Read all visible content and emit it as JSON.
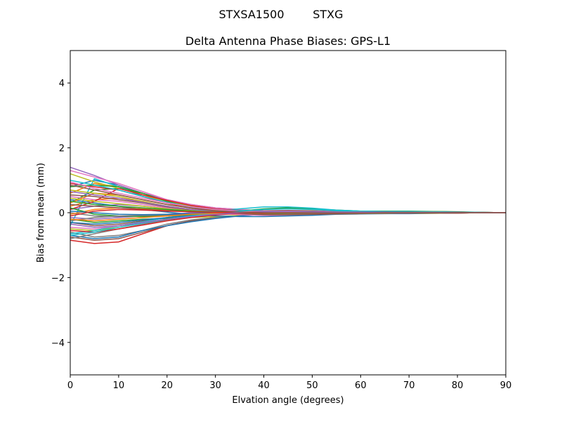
{
  "chart_data": {
    "type": "line",
    "suptitle": "STXSA1500        STXG",
    "title": "Delta Antenna Phase Biases: GPS-L1",
    "xlabel": "Elvation angle (degrees)",
    "ylabel": "Bias from mean (mm)",
    "xlim": [
      0,
      90
    ],
    "ylim": [
      -5,
      5
    ],
    "xticks": [
      "0",
      "10",
      "20",
      "30",
      "40",
      "50",
      "60",
      "70",
      "80",
      "90"
    ],
    "yticks": [
      "4",
      "2",
      "0",
      "−2",
      "−4"
    ],
    "x": [
      0,
      5,
      10,
      15,
      20,
      25,
      30,
      35,
      40,
      45,
      50,
      55,
      60,
      65,
      70,
      75,
      80,
      85,
      90
    ],
    "legend": "none",
    "grid": false,
    "series": [
      {
        "color": "#1f77b4",
        "values": [
          0.8,
          1.0,
          0.85,
          0.6,
          0.35,
          0.2,
          0.12,
          0.08,
          0.05,
          0.03,
          0.02,
          0.02,
          0.03,
          0.04,
          0.04,
          0.03,
          0.02,
          0.01,
          0.0
        ]
      },
      {
        "color": "#ff7f0e",
        "values": [
          0.6,
          0.9,
          0.8,
          0.55,
          0.3,
          0.15,
          0.08,
          0.05,
          0.04,
          0.03,
          0.02,
          0.02,
          0.03,
          0.03,
          0.03,
          0.02,
          0.02,
          0.01,
          0.0
        ]
      },
      {
        "color": "#2ca02c",
        "values": [
          0.3,
          0.7,
          0.75,
          0.6,
          0.35,
          0.2,
          0.1,
          0.06,
          0.04,
          0.03,
          0.02,
          0.01,
          0.02,
          0.02,
          0.02,
          0.01,
          0.01,
          0.0,
          0.0
        ]
      },
      {
        "color": "#d62728",
        "values": [
          -0.85,
          -0.95,
          -0.9,
          -0.65,
          -0.4,
          -0.25,
          -0.15,
          -0.08,
          -0.03,
          0.0,
          0.02,
          0.02,
          0.01,
          0.0,
          0.0,
          0.0,
          0.0,
          0.0,
          0.0
        ]
      },
      {
        "color": "#9467bd",
        "values": [
          1.4,
          1.15,
          0.85,
          0.6,
          0.4,
          0.25,
          0.15,
          0.1,
          0.06,
          0.03,
          0.01,
          0.0,
          -0.01,
          -0.01,
          -0.01,
          -0.01,
          0.0,
          0.0,
          0.0
        ]
      },
      {
        "color": "#8c564b",
        "values": [
          -0.75,
          -0.85,
          -0.8,
          -0.6,
          -0.4,
          -0.25,
          -0.15,
          -0.08,
          -0.03,
          0.0,
          0.01,
          0.01,
          0.01,
          0.0,
          0.0,
          0.0,
          0.0,
          0.0,
          0.0
        ]
      },
      {
        "color": "#e377c2",
        "values": [
          1.3,
          1.1,
          0.9,
          0.65,
          0.4,
          0.25,
          0.15,
          0.1,
          0.06,
          0.04,
          0.02,
          0.01,
          0.0,
          0.0,
          0.0,
          0.0,
          0.0,
          0.0,
          0.0
        ]
      },
      {
        "color": "#7f7f7f",
        "values": [
          -0.6,
          -0.75,
          -0.7,
          -0.55,
          -0.35,
          -0.22,
          -0.14,
          -0.08,
          -0.04,
          -0.02,
          -0.01,
          0.0,
          0.0,
          0.0,
          0.0,
          0.0,
          0.0,
          0.0,
          0.0
        ]
      },
      {
        "color": "#bcbd22",
        "values": [
          -0.5,
          -0.55,
          -0.45,
          -0.3,
          -0.2,
          -0.15,
          -0.12,
          -0.08,
          -0.05,
          -0.03,
          -0.02,
          -0.01,
          0.0,
          0.0,
          0.0,
          0.0,
          0.0,
          0.0,
          0.0
        ]
      },
      {
        "color": "#17becf",
        "values": [
          -0.4,
          1.05,
          0.8,
          0.5,
          0.3,
          0.18,
          0.1,
          0.07,
          0.06,
          0.04,
          0.02,
          0.01,
          0.01,
          0.01,
          0.01,
          0.01,
          0.0,
          0.0,
          0.0
        ]
      },
      {
        "color": "#1f77b4",
        "values": [
          -0.7,
          -0.8,
          -0.75,
          -0.55,
          -0.4,
          -0.28,
          -0.18,
          -0.1,
          -0.05,
          -0.02,
          0.0,
          0.01,
          0.01,
          0.01,
          0.0,
          0.0,
          0.0,
          0.0,
          0.0
        ]
      },
      {
        "color": "#ff7f0e",
        "values": [
          0.2,
          0.4,
          0.45,
          0.35,
          0.2,
          0.1,
          0.05,
          0.03,
          0.02,
          0.01,
          0.01,
          0.01,
          0.01,
          0.01,
          0.01,
          0.0,
          0.0,
          0.0,
          0.0
        ]
      },
      {
        "color": "#2ca02c",
        "values": [
          -0.2,
          -0.3,
          -0.25,
          -0.2,
          -0.18,
          -0.12,
          -0.05,
          0.05,
          0.12,
          0.15,
          0.12,
          0.08,
          0.05,
          0.05,
          0.05,
          0.04,
          0.03,
          0.01,
          0.0
        ]
      },
      {
        "color": "#d62728",
        "values": [
          0.9,
          0.8,
          0.7,
          0.5,
          0.3,
          0.15,
          0.05,
          0.0,
          -0.03,
          -0.04,
          -0.04,
          -0.03,
          -0.02,
          -0.02,
          -0.02,
          -0.01,
          -0.01,
          0.0,
          0.0
        ]
      },
      {
        "color": "#9467bd",
        "values": [
          0.1,
          0.2,
          0.25,
          0.2,
          0.12,
          0.06,
          0.03,
          0.02,
          0.01,
          0.01,
          0.01,
          0.01,
          0.01,
          0.01,
          0.01,
          0.0,
          0.0,
          0.0,
          0.0
        ]
      },
      {
        "color": "#8c564b",
        "values": [
          -0.3,
          -0.4,
          -0.35,
          -0.25,
          -0.15,
          -0.08,
          -0.02,
          0.03,
          0.06,
          0.07,
          0.06,
          0.04,
          0.03,
          0.03,
          0.03,
          0.02,
          0.02,
          0.01,
          0.0
        ]
      },
      {
        "color": "#e377c2",
        "values": [
          0.5,
          0.4,
          0.35,
          0.25,
          0.15,
          0.05,
          -0.02,
          -0.06,
          -0.08,
          -0.08,
          -0.06,
          -0.04,
          -0.03,
          -0.03,
          -0.02,
          -0.02,
          -0.01,
          0.0,
          0.0
        ]
      },
      {
        "color": "#7f7f7f",
        "values": [
          0.0,
          -0.1,
          -0.12,
          -0.1,
          -0.08,
          -0.05,
          -0.02,
          0.0,
          0.02,
          0.03,
          0.03,
          0.02,
          0.02,
          0.02,
          0.02,
          0.01,
          0.01,
          0.0,
          0.0
        ]
      },
      {
        "color": "#bcbd22",
        "values": [
          1.2,
          0.95,
          0.75,
          0.55,
          0.35,
          0.2,
          0.1,
          0.05,
          0.02,
          0.0,
          -0.01,
          -0.01,
          -0.01,
          -0.01,
          -0.01,
          -0.01,
          0.0,
          0.0,
          0.0
        ]
      },
      {
        "color": "#17becf",
        "values": [
          -0.65,
          -0.55,
          -0.4,
          -0.28,
          -0.15,
          -0.05,
          0.05,
          0.12,
          0.18,
          0.18,
          0.14,
          0.08,
          0.05,
          0.04,
          0.04,
          0.03,
          0.02,
          0.01,
          0.0
        ]
      },
      {
        "color": "#1f77b4",
        "values": [
          0.4,
          0.3,
          0.2,
          0.1,
          0.02,
          -0.05,
          -0.1,
          -0.12,
          -0.12,
          -0.1,
          -0.08,
          -0.05,
          -0.04,
          -0.03,
          -0.03,
          -0.02,
          -0.01,
          0.0,
          0.0
        ]
      },
      {
        "color": "#ff7f0e",
        "values": [
          0.3,
          0.6,
          0.55,
          0.4,
          0.25,
          0.15,
          0.08,
          0.05,
          0.03,
          0.02,
          0.01,
          0.01,
          0.01,
          0.01,
          0.01,
          0.01,
          0.0,
          0.0,
          0.0
        ]
      },
      {
        "color": "#2ca02c",
        "values": [
          0.8,
          0.85,
          0.8,
          0.6,
          0.35,
          0.15,
          0.05,
          0.0,
          -0.02,
          -0.03,
          -0.03,
          -0.02,
          -0.02,
          -0.01,
          -0.01,
          -0.01,
          0.0,
          0.0,
          0.0
        ]
      },
      {
        "color": "#d62728",
        "values": [
          0.1,
          0.35,
          0.75,
          0.55,
          0.38,
          0.22,
          0.12,
          0.06,
          0.03,
          0.01,
          0.0,
          -0.01,
          -0.02,
          -0.02,
          -0.02,
          -0.01,
          -0.01,
          0.0,
          0.0
        ]
      },
      {
        "color": "#9467bd",
        "values": [
          -0.15,
          -0.2,
          -0.15,
          -0.1,
          -0.05,
          0.0,
          0.02,
          0.04,
          0.05,
          0.05,
          0.04,
          0.03,
          0.02,
          0.02,
          0.02,
          0.01,
          0.01,
          0.0,
          0.0
        ]
      },
      {
        "color": "#8c564b",
        "values": [
          0.55,
          0.5,
          0.4,
          0.3,
          0.18,
          0.08,
          0.02,
          -0.03,
          -0.06,
          -0.06,
          -0.05,
          -0.04,
          -0.03,
          -0.02,
          -0.02,
          -0.01,
          -0.01,
          0.0,
          0.0
        ]
      },
      {
        "color": "#e377c2",
        "values": [
          -0.45,
          -0.5,
          -0.4,
          -0.3,
          -0.2,
          -0.12,
          -0.05,
          0.0,
          0.04,
          0.05,
          0.04,
          0.03,
          0.02,
          0.02,
          0.02,
          0.01,
          0.01,
          0.0,
          0.0
        ]
      },
      {
        "color": "#7f7f7f",
        "values": [
          -0.8,
          -0.65,
          -0.5,
          -0.35,
          -0.22,
          -0.12,
          -0.05,
          0.0,
          0.02,
          0.03,
          0.03,
          0.02,
          0.02,
          0.02,
          0.02,
          0.01,
          0.01,
          0.0,
          0.0
        ]
      },
      {
        "color": "#bcbd22",
        "values": [
          0.7,
          0.6,
          0.5,
          0.35,
          0.2,
          0.1,
          0.04,
          0.0,
          -0.02,
          -0.02,
          -0.02,
          -0.01,
          -0.01,
          -0.01,
          -0.01,
          -0.01,
          0.0,
          0.0,
          0.0
        ]
      },
      {
        "color": "#17becf",
        "values": [
          1.0,
          0.85,
          0.7,
          0.5,
          0.32,
          0.18,
          0.1,
          0.05,
          0.02,
          0.0,
          -0.01,
          -0.01,
          -0.01,
          -0.01,
          -0.01,
          0.0,
          0.0,
          0.0,
          0.0
        ]
      },
      {
        "color": "#1f77b4",
        "values": [
          -0.3,
          -0.35,
          -0.3,
          -0.22,
          -0.15,
          -0.08,
          -0.03,
          0.01,
          0.03,
          0.04,
          0.03,
          0.02,
          0.02,
          0.02,
          0.01,
          0.01,
          0.01,
          0.0,
          0.0
        ]
      },
      {
        "color": "#ff7f0e",
        "values": [
          -0.05,
          0.1,
          0.15,
          0.12,
          0.08,
          0.04,
          0.02,
          0.01,
          0.0,
          0.0,
          0.0,
          0.0,
          0.0,
          0.0,
          0.0,
          0.0,
          0.0,
          0.0,
          0.0
        ]
      },
      {
        "color": "#2ca02c",
        "values": [
          0.15,
          -0.05,
          -0.1,
          -0.12,
          -0.1,
          -0.06,
          -0.03,
          0.0,
          0.02,
          0.03,
          0.03,
          0.02,
          0.02,
          0.02,
          0.01,
          0.01,
          0.01,
          0.0,
          0.0
        ]
      },
      {
        "color": "#d62728",
        "values": [
          -0.55,
          -0.6,
          -0.5,
          -0.38,
          -0.25,
          -0.15,
          -0.07,
          -0.02,
          0.01,
          0.02,
          0.02,
          0.02,
          0.01,
          0.01,
          0.01,
          0.01,
          0.0,
          0.0,
          0.0
        ]
      },
      {
        "color": "#9467bd",
        "values": [
          0.65,
          0.55,
          0.45,
          0.32,
          0.2,
          0.1,
          0.04,
          0.01,
          -0.01,
          -0.02,
          -0.02,
          -0.01,
          -0.01,
          -0.01,
          -0.01,
          0.0,
          0.0,
          0.0,
          0.0
        ]
      },
      {
        "color": "#8c564b",
        "values": [
          0.25,
          0.2,
          0.15,
          0.1,
          0.06,
          0.03,
          0.01,
          0.0,
          -0.01,
          -0.01,
          -0.01,
          -0.01,
          0.0,
          0.0,
          0.0,
          0.0,
          0.0,
          0.0,
          0.0
        ]
      },
      {
        "color": "#e377c2",
        "values": [
          0.95,
          0.75,
          0.6,
          0.45,
          0.3,
          0.18,
          0.1,
          0.05,
          0.03,
          0.01,
          0.0,
          0.0,
          0.0,
          0.0,
          0.0,
          0.0,
          0.0,
          0.0,
          0.0
        ]
      },
      {
        "color": "#7f7f7f",
        "values": [
          -0.25,
          -0.15,
          -0.1,
          -0.08,
          -0.06,
          -0.04,
          -0.02,
          0.0,
          0.01,
          0.02,
          0.02,
          0.01,
          0.01,
          0.01,
          0.01,
          0.0,
          0.0,
          0.0,
          0.0
        ]
      },
      {
        "color": "#bcbd22",
        "values": [
          0.45,
          0.35,
          0.28,
          0.2,
          0.12,
          0.06,
          0.02,
          0.0,
          -0.01,
          -0.02,
          -0.01,
          -0.01,
          -0.01,
          -0.01,
          0.0,
          0.0,
          0.0,
          0.0,
          0.0
        ]
      },
      {
        "color": "#17becf",
        "values": [
          -0.7,
          -0.6,
          -0.45,
          -0.32,
          -0.2,
          -0.1,
          -0.02,
          0.05,
          0.1,
          0.12,
          0.1,
          0.06,
          0.04,
          0.03,
          0.03,
          0.02,
          0.01,
          0.0,
          0.0
        ]
      },
      {
        "color": "#1f77b4",
        "values": [
          0.05,
          0.0,
          -0.05,
          -0.06,
          -0.05,
          -0.03,
          -0.01,
          0.01,
          0.02,
          0.02,
          0.02,
          0.01,
          0.01,
          0.01,
          0.01,
          0.0,
          0.0,
          0.0,
          0.0
        ]
      },
      {
        "color": "#ff7f0e",
        "values": [
          -0.2,
          -0.25,
          -0.2,
          -0.15,
          -0.1,
          -0.05,
          -0.02,
          0.01,
          0.03,
          0.03,
          0.03,
          0.02,
          0.02,
          0.01,
          0.01,
          0.01,
          0.0,
          0.0,
          0.0
        ]
      },
      {
        "color": "#2ca02c",
        "values": [
          0.35,
          0.25,
          0.2,
          0.15,
          0.1,
          0.05,
          0.02,
          0.0,
          -0.01,
          -0.01,
          -0.01,
          0.0,
          0.0,
          0.0,
          0.0,
          0.0,
          0.0,
          0.0,
          0.0
        ]
      },
      {
        "color": "#d62728",
        "values": [
          -0.1,
          0.05,
          0.1,
          0.08,
          0.05,
          0.03,
          0.01,
          0.0,
          -0.01,
          -0.01,
          -0.01,
          -0.01,
          0.0,
          0.0,
          0.0,
          0.0,
          0.0,
          0.0,
          0.0
        ]
      },
      {
        "color": "#9467bd",
        "values": [
          -0.35,
          -0.45,
          -0.4,
          -0.3,
          -0.2,
          -0.12,
          -0.05,
          0.0,
          0.03,
          0.04,
          0.03,
          0.02,
          0.02,
          0.02,
          0.01,
          0.01,
          0.01,
          0.0,
          0.0
        ]
      },
      {
        "color": "#8c564b",
        "values": [
          0.85,
          0.7,
          0.55,
          0.4,
          0.25,
          0.14,
          0.06,
          0.02,
          0.0,
          -0.01,
          -0.01,
          -0.01,
          -0.01,
          0.0,
          0.0,
          0.0,
          0.0,
          0.0,
          0.0
        ]
      }
    ]
  }
}
